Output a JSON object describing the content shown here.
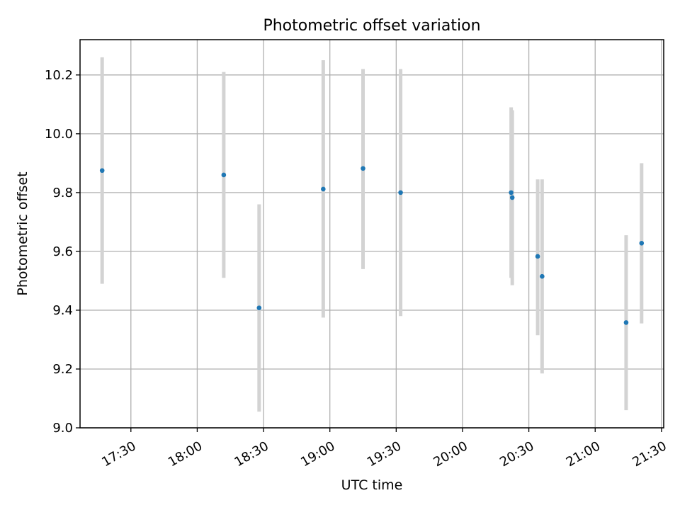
{
  "chart_data": {
    "type": "scatter",
    "title": "Photometric offset variation",
    "xlabel": "UTC time",
    "ylabel": "Photometric offset",
    "xlim": [
      "17:07",
      "21:31"
    ],
    "ylim": [
      9.0,
      10.32
    ],
    "grid": true,
    "x_ticks": [
      "17:30",
      "18:00",
      "18:30",
      "19:00",
      "19:30",
      "20:00",
      "20:30",
      "21:00",
      "21:30"
    ],
    "y_ticks": [
      9.0,
      9.2,
      9.4,
      9.6,
      9.8,
      10.0,
      10.2
    ],
    "y_tick_labels": [
      "9.0",
      "9.2",
      "9.4",
      "9.6",
      "9.8",
      "10.0",
      "10.2"
    ],
    "colors": {
      "point": "#1f77b4",
      "errorbar": "#d3d3d3"
    },
    "points": [
      {
        "x": "17:17",
        "y": 9.875,
        "ylow": 9.49,
        "yhigh": 10.26
      },
      {
        "x": "18:12",
        "y": 9.86,
        "ylow": 9.51,
        "yhigh": 10.21
      },
      {
        "x": "18:28",
        "y": 9.408,
        "ylow": 9.055,
        "yhigh": 9.76
      },
      {
        "x": "18:57",
        "y": 9.812,
        "ylow": 9.375,
        "yhigh": 10.25
      },
      {
        "x": "19:15",
        "y": 9.882,
        "ylow": 9.54,
        "yhigh": 10.22
      },
      {
        "x": "19:32",
        "y": 9.8,
        "ylow": 9.38,
        "yhigh": 10.22
      },
      {
        "x": "20:22",
        "y": 9.8,
        "ylow": 9.51,
        "yhigh": 10.09
      },
      {
        "x": "20:22.5",
        "y": 9.783,
        "ylow": 9.485,
        "yhigh": 10.08
      },
      {
        "x": "20:34",
        "y": 9.583,
        "ylow": 9.315,
        "yhigh": 9.845
      },
      {
        "x": "20:36",
        "y": 9.515,
        "ylow": 9.185,
        "yhigh": 9.845
      },
      {
        "x": "21:14",
        "y": 9.358,
        "ylow": 9.06,
        "yhigh": 9.655
      },
      {
        "x": "21:21",
        "y": 9.628,
        "ylow": 9.355,
        "yhigh": 9.9
      }
    ]
  }
}
